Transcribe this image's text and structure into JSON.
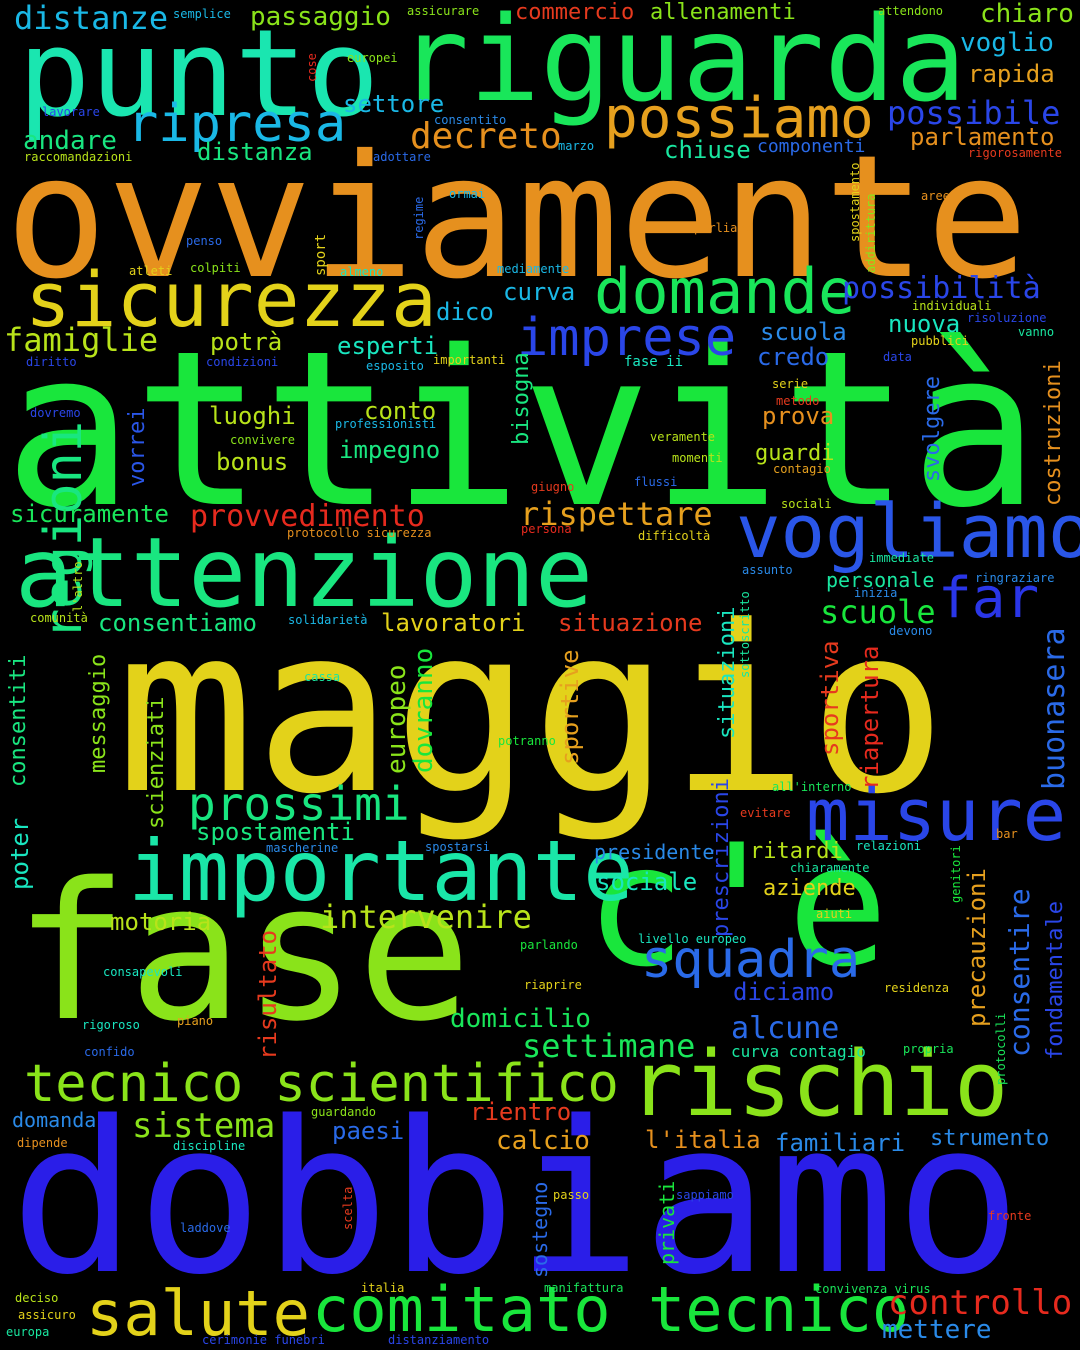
{
  "background": "#000000",
  "words": [
    {
      "text": "attività",
      "color": "#19e63c"
    },
    {
      "text": "maggio",
      "color": "#e3d21a"
    },
    {
      "text": "dobbiamo",
      "color": "#2a1ee8"
    },
    {
      "text": "fase",
      "color": "#8ae31a"
    },
    {
      "text": "c'è",
      "color": "#19e63c"
    },
    {
      "text": "ovviamente",
      "color": "#e6901e"
    },
    {
      "text": "riguarda",
      "color": "#19e65a"
    },
    {
      "text": "punto",
      "color": "#1ae6b0"
    },
    {
      "text": "attenzione",
      "color": "#19e680"
    },
    {
      "text": "importante",
      "color": "#1ae6a8"
    },
    {
      "text": "rischio",
      "color": "#8ae31a"
    },
    {
      "text": "sicurezza",
      "color": "#e3d21a"
    },
    {
      "text": "vogliamo",
      "color": "#2a56e8"
    },
    {
      "text": "comitato tecnico",
      "color": "#19e63c"
    },
    {
      "text": "tecnico scientifico",
      "color": "#8ae31a"
    },
    {
      "text": "domande",
      "color": "#19e65a"
    },
    {
      "text": "possiamo",
      "color": "#e6a01e"
    },
    {
      "text": "misure",
      "color": "#2a46e8"
    },
    {
      "text": "salute",
      "color": "#e3d21a"
    },
    {
      "text": "squadra",
      "color": "#2a6ae8"
    },
    {
      "text": "imprese",
      "color": "#2a46e8"
    },
    {
      "text": "ripresa",
      "color": "#1ab8e6"
    },
    {
      "text": "prossimi",
      "color": "#19e680"
    },
    {
      "text": "far",
      "color": "#2a36e8"
    },
    {
      "text": "regioni",
      "color": "#19e680"
    },
    {
      "text": "decreto",
      "color": "#e6901e"
    },
    {
      "text": "possibile",
      "color": "#2a46e8"
    },
    {
      "text": "possibilità",
      "color": "#2a46e8"
    },
    {
      "text": "provvedimento",
      "color": "#e62a1e"
    },
    {
      "text": "rispettare",
      "color": "#e6a01e"
    },
    {
      "text": "settimane",
      "color": "#19e65a"
    },
    {
      "text": "intervenire",
      "color": "#b8e31a"
    },
    {
      "text": "scuole",
      "color": "#19e63c"
    },
    {
      "text": "famiglie",
      "color": "#b8e31a"
    },
    {
      "text": "controllo",
      "color": "#e62a1e"
    },
    {
      "text": "sistema",
      "color": "#8ae31a"
    },
    {
      "text": "mettere",
      "color": "#2a8ae8"
    },
    {
      "text": "distanze",
      "color": "#1ab8e6"
    },
    {
      "text": "passaggio",
      "color": "#8ae31a"
    },
    {
      "text": "commercio",
      "color": "#e63a1e"
    },
    {
      "text": "allenamenti",
      "color": "#8ae31a"
    },
    {
      "text": "chiaro",
      "color": "#8ae31a"
    },
    {
      "text": "voglio",
      "color": "#1ab8e6"
    },
    {
      "text": "rapida",
      "color": "#e6a01e"
    },
    {
      "text": "settore",
      "color": "#1ab8e6"
    },
    {
      "text": "andare",
      "color": "#19e680"
    },
    {
      "text": "distanza",
      "color": "#19e680"
    },
    {
      "text": "chiuse",
      "color": "#19e6a0"
    },
    {
      "text": "componenti",
      "color": "#2a6ae8"
    },
    {
      "text": "parlamento",
      "color": "#e6901e"
    },
    {
      "text": "curva",
      "color": "#1ab8e6"
    },
    {
      "text": "nuova",
      "color": "#19e6c0"
    },
    {
      "text": "scuola",
      "color": "#2a8ae8"
    },
    {
      "text": "credo",
      "color": "#2a6ae8"
    },
    {
      "text": "potrà",
      "color": "#b8e31a"
    },
    {
      "text": "dico",
      "color": "#1ab8e6"
    },
    {
      "text": "esperti",
      "color": "#19e6c0"
    },
    {
      "text": "luoghi",
      "color": "#b8e31a"
    },
    {
      "text": "conto",
      "color": "#b8e31a"
    },
    {
      "text": "impegno",
      "color": "#19e680"
    },
    {
      "text": "bonus",
      "color": "#b8e31a"
    },
    {
      "text": "bisogna",
      "color": "#19e680"
    },
    {
      "text": "prova",
      "color": "#e6901e"
    },
    {
      "text": "guardi",
      "color": "#b8e31a"
    },
    {
      "text": "svolgere",
      "color": "#2a6ae8"
    },
    {
      "text": "costruzioni",
      "color": "#e6901e"
    },
    {
      "text": "vorrei",
      "color": "#2a56e8"
    },
    {
      "text": "sicuramente",
      "color": "#19e65a"
    },
    {
      "text": "consentiamo",
      "color": "#19e680"
    },
    {
      "text": "lavoratori",
      "color": "#e3d21a"
    },
    {
      "text": "situazione",
      "color": "#e63a1e"
    },
    {
      "text": "personale",
      "color": "#19e6a0"
    },
    {
      "text": "buonasera",
      "color": "#2a6ae8"
    },
    {
      "text": "consentiti",
      "color": "#19e680"
    },
    {
      "text": "messaggio",
      "color": "#8ae31a"
    },
    {
      "text": "scienziati",
      "color": "#8ae31a"
    },
    {
      "text": "europeo",
      "color": "#8ae31a"
    },
    {
      "text": "dovranno",
      "color": "#19e63c"
    },
    {
      "text": "sportive",
      "color": "#e6a01e"
    },
    {
      "text": "situazioni",
      "color": "#19e6c0"
    },
    {
      "text": "sportiva",
      "color": "#e63a1e"
    },
    {
      "text": "riapertura",
      "color": "#e62a1e"
    },
    {
      "text": "spostamenti",
      "color": "#19e680"
    },
    {
      "text": "poter",
      "color": "#19e6c0"
    },
    {
      "text": "prescrizioni",
      "color": "#2a46e8"
    },
    {
      "text": "precauzioni",
      "color": "#e6a01e"
    },
    {
      "text": "consentire",
      "color": "#2a6ae8"
    },
    {
      "text": "fondamentale",
      "color": "#2a46e8"
    },
    {
      "text": "presidente",
      "color": "#2a8ae8"
    },
    {
      "text": "ritardi",
      "color": "#b8e31a"
    },
    {
      "text": "sociale",
      "color": "#19e6c0"
    },
    {
      "text": "aziende",
      "color": "#e3d21a"
    },
    {
      "text": "motoria",
      "color": "#b8e31a"
    },
    {
      "text": "risultato",
      "color": "#e63a1e"
    },
    {
      "text": "diciamo",
      "color": "#2a46e8"
    },
    {
      "text": "domicilio",
      "color": "#19e65a"
    },
    {
      "text": "alcune",
      "color": "#2a6ae8"
    },
    {
      "text": "rientro",
      "color": "#e63a1e"
    },
    {
      "text": "calcio",
      "color": "#e6a01e"
    },
    {
      "text": "l'italia",
      "color": "#e6901e"
    },
    {
      "text": "familiari",
      "color": "#2a8ae8"
    },
    {
      "text": "strumento",
      "color": "#2a8ae8"
    },
    {
      "text": "paesi",
      "color": "#2a6ae8"
    },
    {
      "text": "domanda",
      "color": "#2a8ae8"
    },
    {
      "text": "sostegno",
      "color": "#2a6ae8"
    },
    {
      "text": "privati",
      "color": "#19e63c"
    },
    {
      "text": "curva contagio",
      "color": "#19e6a0"
    },
    {
      "text": "semplice",
      "color": "#1ab8e6"
    },
    {
      "text": "assicurare",
      "color": "#8ae31a"
    },
    {
      "text": "attendono",
      "color": "#8ae31a"
    },
    {
      "text": "cose",
      "color": "#e62a1e"
    },
    {
      "text": "europei",
      "color": "#8ae31a"
    },
    {
      "text": "lavorare",
      "color": "#2a46e8"
    },
    {
      "text": "consentito",
      "color": "#2a8ae8"
    },
    {
      "text": "raccomandazioni",
      "color": "#b8e31a"
    },
    {
      "text": "adottare",
      "color": "#2a6ae8"
    },
    {
      "text": "marzo",
      "color": "#1ab8e6"
    },
    {
      "text": "rigorosamente",
      "color": "#e63a1e"
    },
    {
      "text": "ormai",
      "color": "#1ab8e6"
    },
    {
      "text": "regime",
      "color": "#2a6ae8"
    },
    {
      "text": "spostamento",
      "color": "#e3d21a"
    },
    {
      "text": "addirittura",
      "color": "#8ae31a"
    },
    {
      "text": "aree",
      "color": "#e6901e"
    },
    {
      "text": "penso",
      "color": "#2a6ae8"
    },
    {
      "text": "parliamo",
      "color": "#e6901e"
    },
    {
      "text": "atleti",
      "color": "#e3d21a"
    },
    {
      "text": "colpiti",
      "color": "#8ae31a"
    },
    {
      "text": "sport",
      "color": "#e3d21a"
    },
    {
      "text": "almeno",
      "color": "#19e6c0"
    },
    {
      "text": "mediamente",
      "color": "#1ab8e6"
    },
    {
      "text": "individuali",
      "color": "#b8e31a"
    },
    {
      "text": "risoluzione",
      "color": "#2a46e8"
    },
    {
      "text": "pubblici",
      "color": "#e3d21a"
    },
    {
      "text": "vanno",
      "color": "#19e6a0"
    },
    {
      "text": "diritto",
      "color": "#2a46e8"
    },
    {
      "text": "condizioni",
      "color": "#2a46e8"
    },
    {
      "text": "esposito",
      "color": "#1ab8e6"
    },
    {
      "text": "importanti",
      "color": "#e3d21a"
    },
    {
      "text": "fase ii",
      "color": "#19e6c0"
    },
    {
      "text": "data",
      "color": "#2a46e8"
    },
    {
      "text": "serie",
      "color": "#e3d21a"
    },
    {
      "text": "metodo",
      "color": "#e63a1e"
    },
    {
      "text": "dovremo",
      "color": "#2a46e8"
    },
    {
      "text": "professionisti",
      "color": "#1ab8e6"
    },
    {
      "text": "convivere",
      "color": "#8ae31a"
    },
    {
      "text": "veramente",
      "color": "#b8e31a"
    },
    {
      "text": "momenti",
      "color": "#b8e31a"
    },
    {
      "text": "contagio",
      "color": "#e6a01e"
    },
    {
      "text": "flussi",
      "color": "#2a6ae8"
    },
    {
      "text": "giugno",
      "color": "#e63a1e"
    },
    {
      "text": "persona",
      "color": "#e62a1e"
    },
    {
      "text": "sociali",
      "color": "#b8e31a"
    },
    {
      "text": "protocollo sicurezza",
      "color": "#e6901e"
    },
    {
      "text": "difficoltà",
      "color": "#e3d21a"
    },
    {
      "text": "immediate",
      "color": "#19e6a0"
    },
    {
      "text": "assunto",
      "color": "#2a8ae8"
    },
    {
      "text": "inizia",
      "color": "#2a8ae8"
    },
    {
      "text": "ringraziare",
      "color": "#2a8ae8"
    },
    {
      "text": "l'altro",
      "color": "#b8e31a"
    },
    {
      "text": "comunità",
      "color": "#b8e31a"
    },
    {
      "text": "solidarietà",
      "color": "#1ab8e6"
    },
    {
      "text": "sottoscritto",
      "color": "#19e6a0"
    },
    {
      "text": "devono",
      "color": "#2a8ae8"
    },
    {
      "text": "cassa",
      "color": "#19e6a0"
    },
    {
      "text": "potranno",
      "color": "#19e63c"
    },
    {
      "text": "all'interno",
      "color": "#19e65a"
    },
    {
      "text": "evitare",
      "color": "#e63a1e"
    },
    {
      "text": "bar",
      "color": "#e6901e"
    },
    {
      "text": "mascherine",
      "color": "#2a8ae8"
    },
    {
      "text": "spostarsi",
      "color": "#2a8ae8"
    },
    {
      "text": "relazioni",
      "color": "#19e6c0"
    },
    {
      "text": "chiaramente",
      "color": "#19e6a0"
    },
    {
      "text": "genitori",
      "color": "#19e63c"
    },
    {
      "text": "aiuti",
      "color": "#e3d21a"
    },
    {
      "text": "livello europeo",
      "color": "#19e6c0"
    },
    {
      "text": "parlando",
      "color": "#19e63c"
    },
    {
      "text": "consapevoli",
      "color": "#19e6c0"
    },
    {
      "text": "riaprire",
      "color": "#e3d21a"
    },
    {
      "text": "residenza",
      "color": "#e3d21a"
    },
    {
      "text": "rigoroso",
      "color": "#19e6c0"
    },
    {
      "text": "piano",
      "color": "#e6a01e"
    },
    {
      "text": "confido",
      "color": "#2a6ae8"
    },
    {
      "text": "propria",
      "color": "#19e65a"
    },
    {
      "text": "protocolli",
      "color": "#19e65a"
    },
    {
      "text": "guardando",
      "color": "#8ae31a"
    },
    {
      "text": "dipende",
      "color": "#e6901e"
    },
    {
      "text": "discipline",
      "color": "#19e6c0"
    },
    {
      "text": "scelta",
      "color": "#e63a1e"
    },
    {
      "text": "passo",
      "color": "#e3d21a"
    },
    {
      "text": "sappiamo",
      "color": "#2a46e8"
    },
    {
      "text": "laddove",
      "color": "#2a6ae8"
    },
    {
      "text": "fronte",
      "color": "#e63a1e"
    },
    {
      "text": "deciso",
      "color": "#b8e31a"
    },
    {
      "text": "assicuro",
      "color": "#e3d21a"
    },
    {
      "text": "europa",
      "color": "#19e6a0"
    },
    {
      "text": "italia",
      "color": "#e3d21a"
    },
    {
      "text": "manifattura",
      "color": "#19e65a"
    },
    {
      "text": "convivenza virus",
      "color": "#19e65a"
    },
    {
      "text": "cerimonie funebri",
      "color": "#2a46e8"
    },
    {
      "text": "distanziamento",
      "color": "#2a46e8"
    }
  ]
}
